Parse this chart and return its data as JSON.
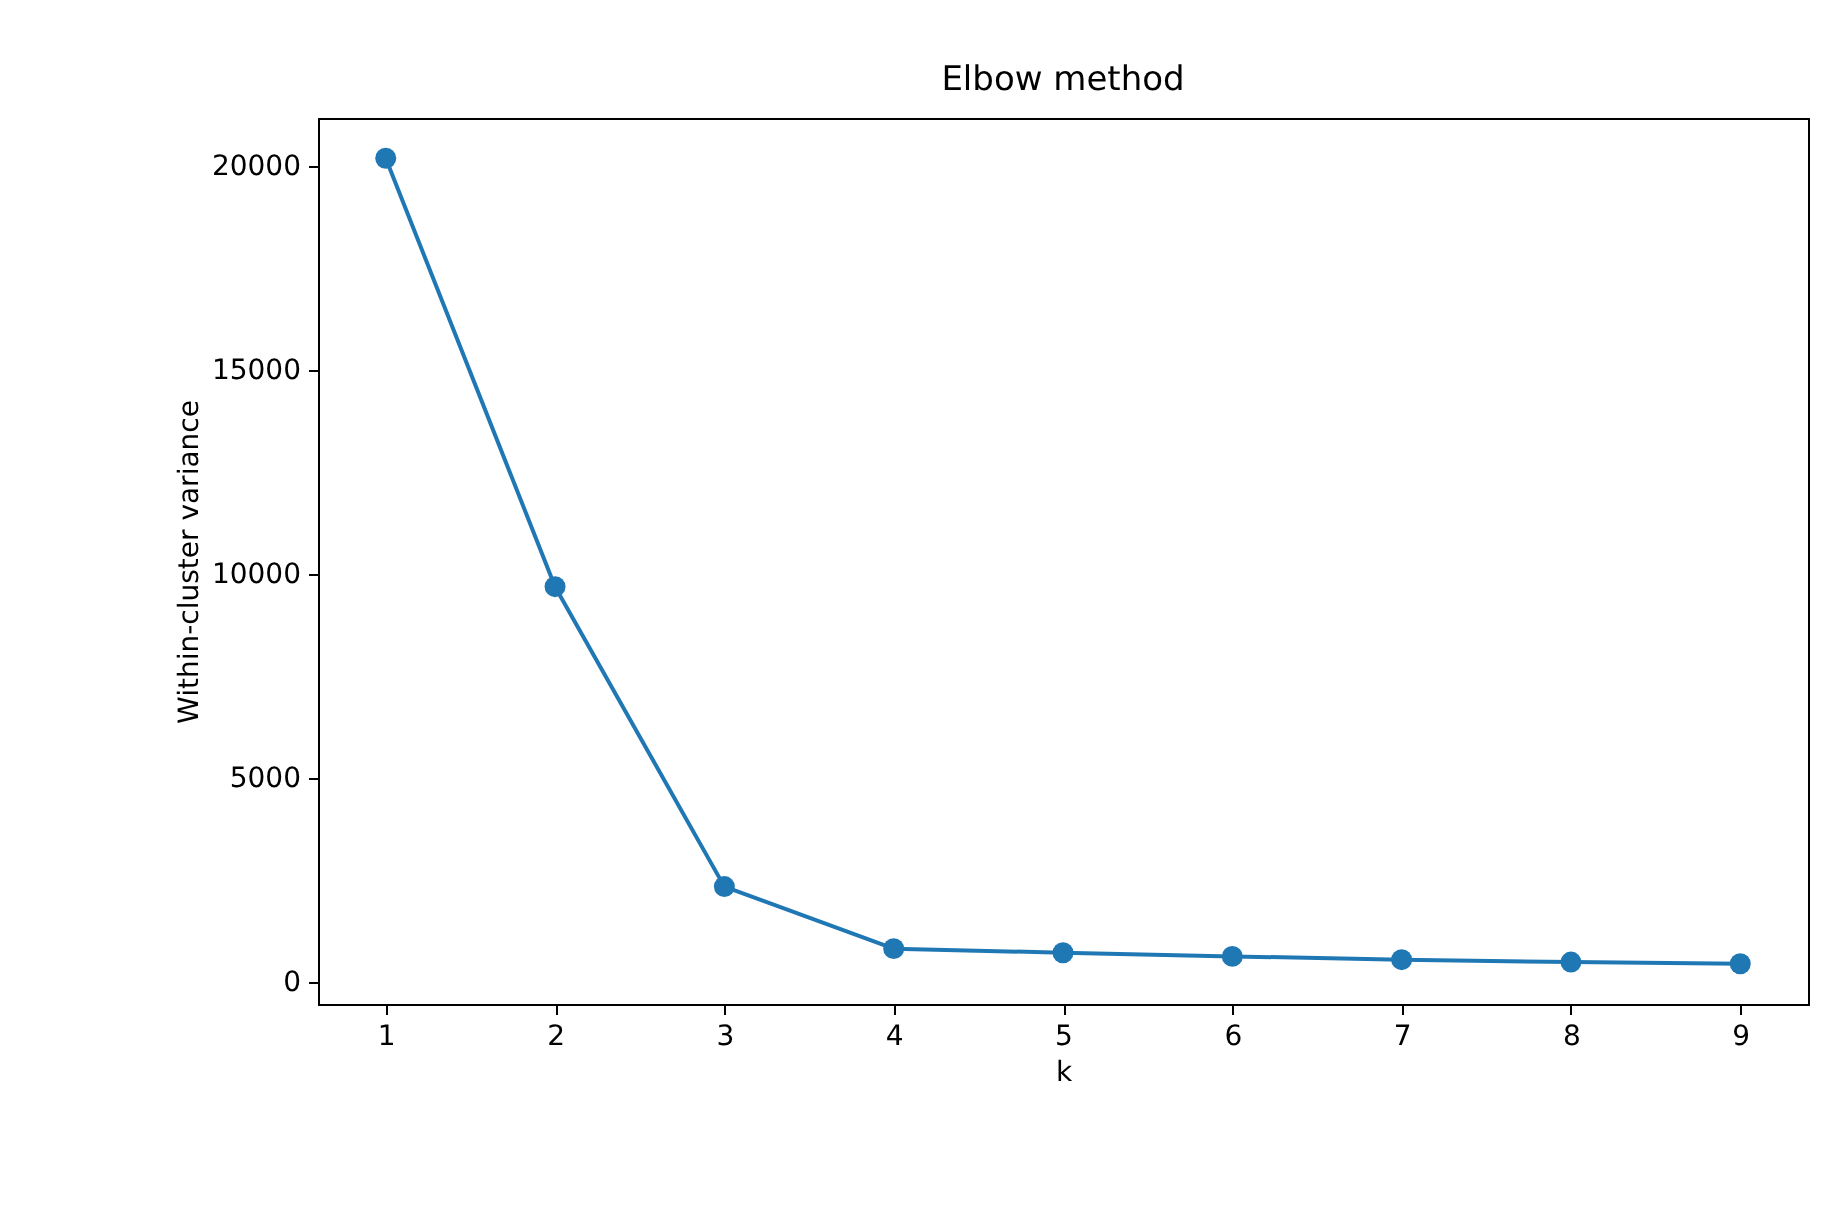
{
  "chart_data": {
    "type": "line",
    "title": "Elbow method",
    "xlabel": "k",
    "ylabel": "Within-cluster variance",
    "x": [
      1,
      2,
      3,
      4,
      5,
      6,
      7,
      8,
      9
    ],
    "series": [
      {
        "color": "#1f77b4",
        "values": [
          20200,
          9700,
          2350,
          830,
          730,
          640,
          560,
          500,
          460
        ]
      }
    ],
    "xlim": [
      0.6,
      9.4
    ],
    "xticks": [
      1,
      2,
      3,
      4,
      5,
      6,
      7,
      8,
      9
    ],
    "ylim": [
      -527,
      21187
    ],
    "yticks": [
      0,
      5000,
      10000,
      15000,
      20000
    ],
    "marker": "circle",
    "line_style": "solid",
    "grid": false
  }
}
